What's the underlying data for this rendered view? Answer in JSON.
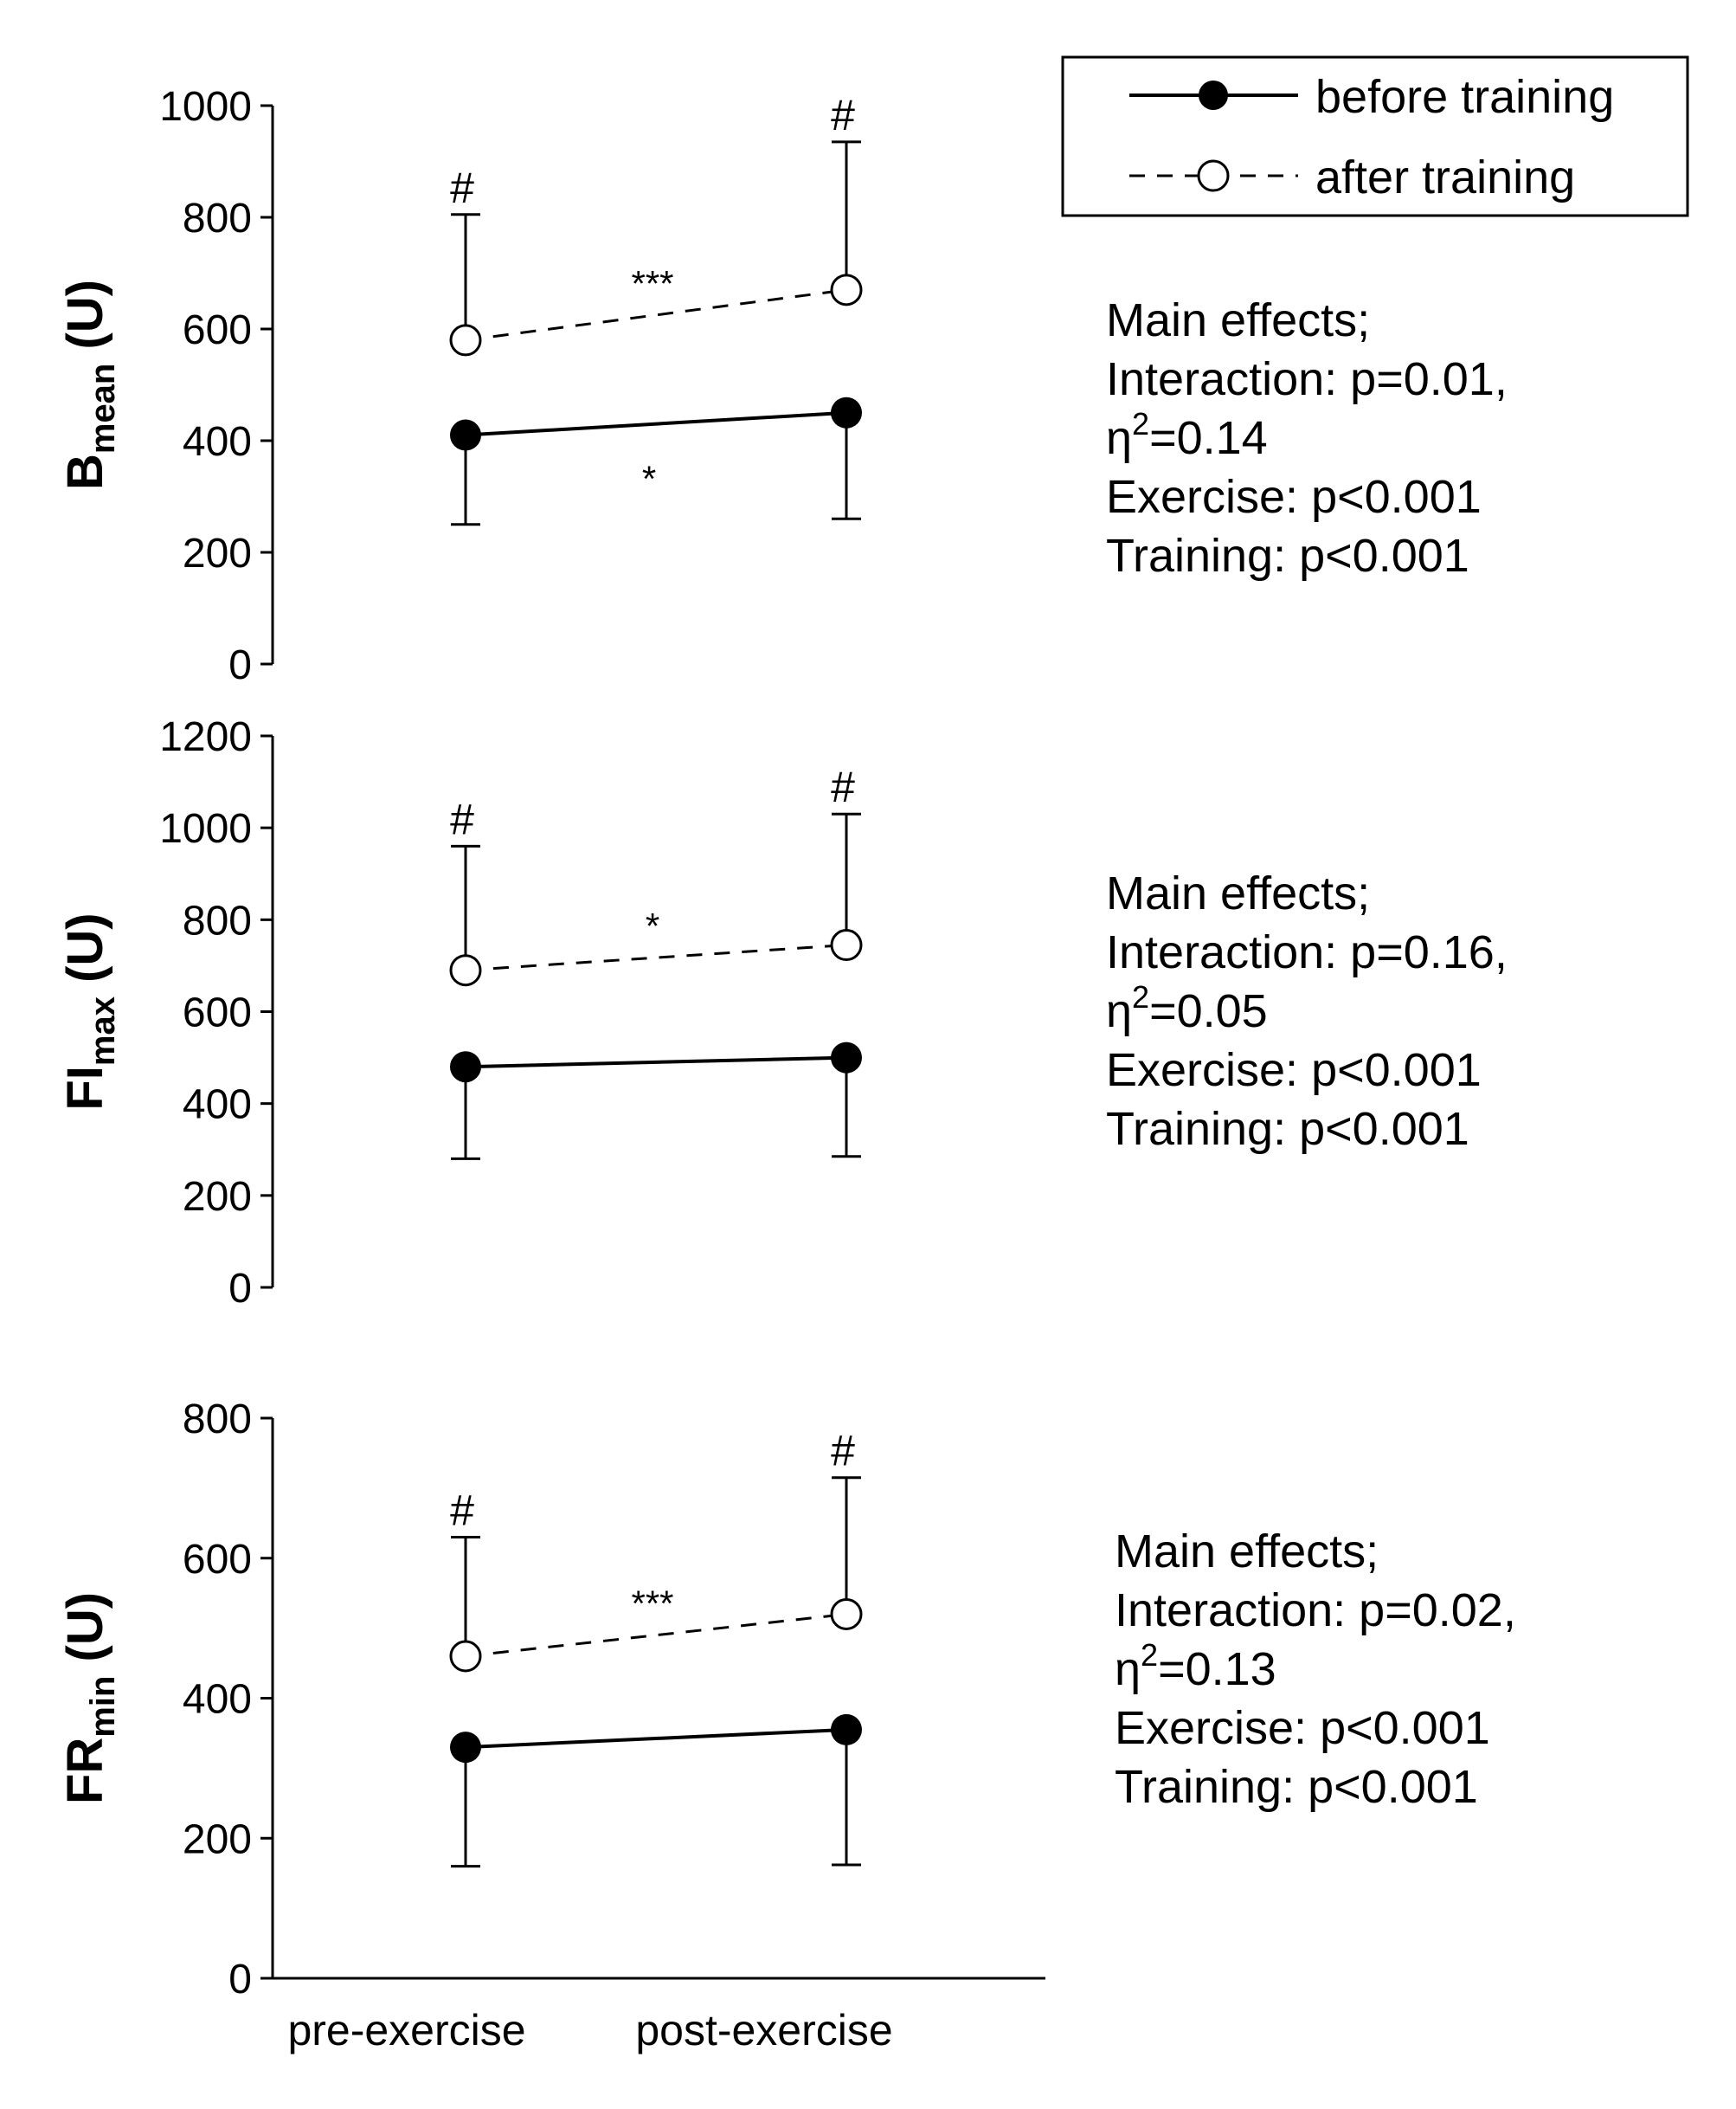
{
  "legend": {
    "before_label": "before training",
    "after_label": "after training"
  },
  "x_categories": [
    "pre-exercise",
    "post-exercise"
  ],
  "panels": [
    {
      "ylabel_main": "B",
      "ylabel_sub": "mean",
      "ylabel_unit": " (U)",
      "yticks": [
        "0",
        "200",
        "400",
        "600",
        "800",
        "1000"
      ],
      "above_after_line": "***",
      "below_before_line": "*",
      "after_marker_sig": [
        "#",
        "#"
      ],
      "stats": {
        "heading": "Main effects;",
        "interaction": "Interaction: p=0.01,",
        "eta_prefix": "η",
        "eta_sup": "2",
        "eta_value": "=0.14",
        "exercise": "Exercise: p<0.001",
        "training": "Training: p<0.001"
      }
    },
    {
      "ylabel_main": "FI",
      "ylabel_sub": "max",
      "ylabel_unit": " (U)",
      "yticks": [
        "0",
        "200",
        "400",
        "600",
        "800",
        "1000",
        "1200"
      ],
      "above_after_line": "*",
      "below_before_line": "",
      "after_marker_sig": [
        "#",
        "#"
      ],
      "stats": {
        "heading": "Main effects;",
        "interaction": "Interaction:  p=0.16,",
        "eta_prefix": "η",
        "eta_sup": "2",
        "eta_value": "=0.05",
        "exercise": "Exercise: p<0.001",
        "training": "Training: p<0.001"
      }
    },
    {
      "ylabel_main": "FR",
      "ylabel_sub": "min",
      "ylabel_unit": " (U)",
      "yticks": [
        "0",
        "200",
        "400",
        "600",
        "800"
      ],
      "above_after_line": "***",
      "below_before_line": "",
      "after_marker_sig": [
        "#",
        "#"
      ],
      "stats": {
        "heading": "Main effects;",
        "interaction": "Interaction: p=0.02,",
        "eta_prefix": "η",
        "eta_sup": "2",
        "eta_value": "=0.13",
        "exercise": "Exercise: p<0.001",
        "training": "Training: p<0.001"
      }
    }
  ],
  "chart_data": [
    {
      "type": "line",
      "title": "",
      "xlabel": "",
      "ylabel": "Bmean (U)",
      "categories": [
        "pre-exercise",
        "post-exercise"
      ],
      "ylim": [
        0,
        1000
      ],
      "series": [
        {
          "name": "before training",
          "values": [
            410,
            450
          ],
          "error_low": [
            250,
            260
          ],
          "style": "solid, filled circle"
        },
        {
          "name": "after training",
          "values": [
            580,
            670
          ],
          "error_high": [
            805,
            935
          ],
          "style": "dashed, open circle"
        }
      ]
    },
    {
      "type": "line",
      "title": "",
      "xlabel": "",
      "ylabel": "FImax (U)",
      "categories": [
        "pre-exercise",
        "post-exercise"
      ],
      "ylim": [
        0,
        1200
      ],
      "series": [
        {
          "name": "before training",
          "values": [
            480,
            500
          ],
          "error_low": [
            280,
            285
          ],
          "style": "solid, filled circle"
        },
        {
          "name": "after training",
          "values": [
            690,
            745
          ],
          "error_high": [
            960,
            1030
          ],
          "style": "dashed, open circle"
        }
      ]
    },
    {
      "type": "line",
      "title": "",
      "xlabel": "",
      "ylabel": "FRmin (U)",
      "categories": [
        "pre-exercise",
        "post-exercise"
      ],
      "ylim": [
        0,
        800
      ],
      "series": [
        {
          "name": "before training",
          "values": [
            330,
            355
          ],
          "error_low": [
            160,
            162
          ],
          "style": "solid, filled circle"
        },
        {
          "name": "after training",
          "values": [
            460,
            520
          ],
          "error_high": [
            630,
            715
          ],
          "style": "dashed, open circle"
        }
      ]
    }
  ]
}
